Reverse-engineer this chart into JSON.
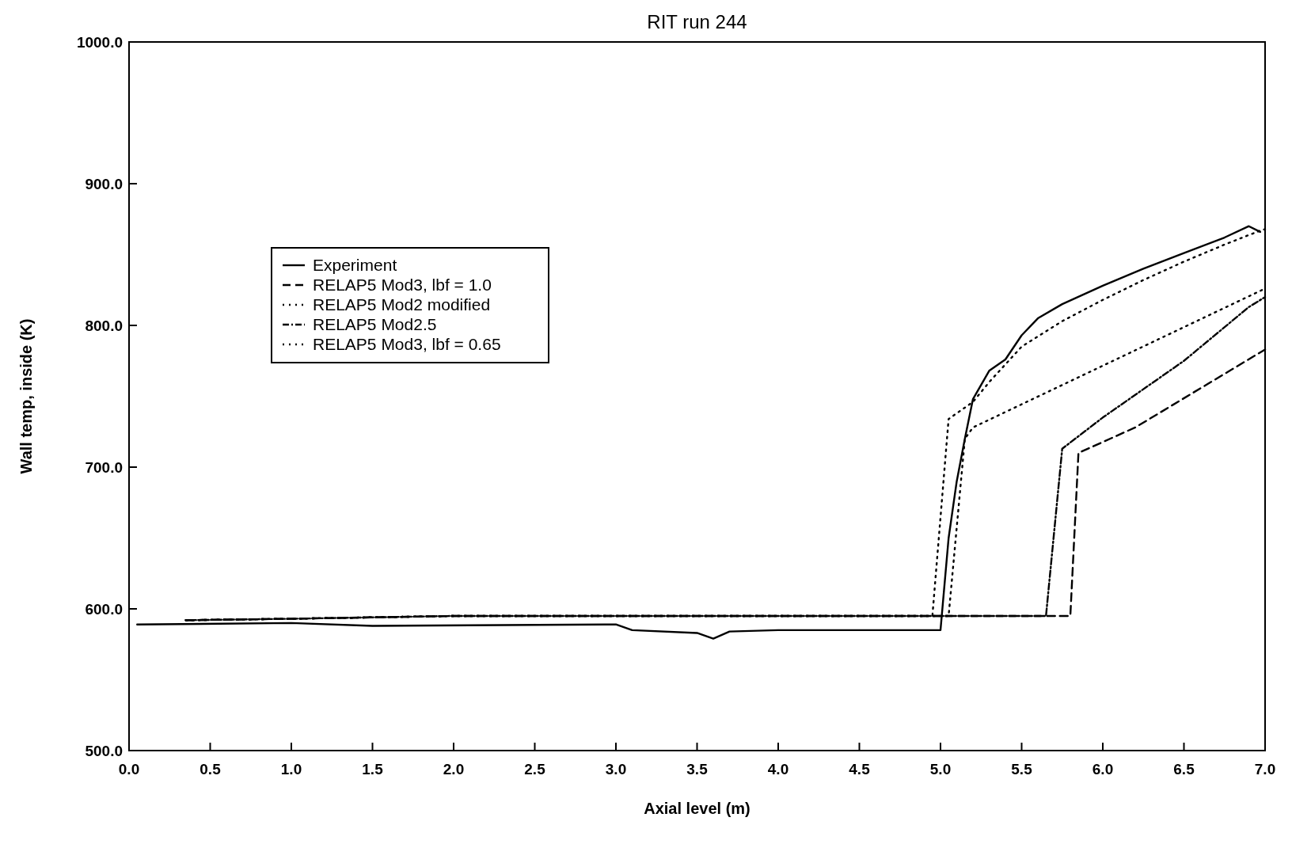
{
  "chart_data": {
    "type": "line",
    "title": "RIT  run 244",
    "xlabel": "Axial level (m)",
    "ylabel": "Wall temp, inside (K)",
    "xlim": [
      0,
      7
    ],
    "xticks": [
      {
        "value": 0,
        "label": "0.0"
      },
      {
        "value": 0.5,
        "label": "0.5"
      },
      {
        "value": 1,
        "label": "1.0"
      },
      {
        "value": 1.5,
        "label": "1.5"
      },
      {
        "value": 2,
        "label": "2.0"
      },
      {
        "value": 2.5,
        "label": "2.5"
      },
      {
        "value": 3,
        "label": "3.0"
      },
      {
        "value": 3.5,
        "label": "3.5"
      },
      {
        "value": 4,
        "label": "4.0"
      },
      {
        "value": 4.5,
        "label": "4.5"
      },
      {
        "value": 5,
        "label": "5.0"
      },
      {
        "value": 5.5,
        "label": "5.5"
      },
      {
        "value": 6,
        "label": "6.0"
      },
      {
        "value": 6.5,
        "label": "6.5"
      },
      {
        "value": 7,
        "label": "7.0"
      }
    ],
    "ylim": [
      500,
      1000
    ],
    "yticks": [
      {
        "value": 500,
        "label": "500.0"
      },
      {
        "value": 600,
        "label": "600.0"
      },
      {
        "value": 700,
        "label": "700.0"
      },
      {
        "value": 800,
        "label": "800.0"
      },
      {
        "value": 900,
        "label": "900.0"
      },
      {
        "value": 1000,
        "label": "1000.0"
      }
    ],
    "grid": false,
    "legend": "left",
    "marker": "none",
    "series": [
      {
        "name": "Experiment",
        "color": "#000000",
        "line_style": "solid",
        "x": [
          0.05,
          1.0,
          1.5,
          3.0,
          3.1,
          3.5,
          3.6,
          3.7,
          4.0,
          5.0,
          5.05,
          5.1,
          5.15,
          5.2,
          5.3,
          5.4,
          5.5,
          5.6,
          5.75,
          6.0,
          6.25,
          6.5,
          6.75,
          6.9,
          6.97
        ],
        "values": [
          589,
          590,
          588,
          589,
          585,
          583,
          579,
          584,
          585,
          585,
          650,
          690,
          720,
          748,
          768,
          776,
          793,
          805,
          815,
          828,
          840,
          851,
          862,
          870,
          866
        ]
      },
      {
        "name": "RELAP5 Mod3, lbf = 1.0",
        "color": "#000000",
        "line_style": "dashed",
        "x": [
          0.35,
          1.0,
          2.0,
          5.8,
          5.85,
          6.2,
          7.0
        ],
        "values": [
          592,
          593,
          595,
          595,
          710,
          728,
          783
        ]
      },
      {
        "name": "RELAP5 Mod2 modified",
        "color": "#000000",
        "line_style": "dotted",
        "x": [
          0.35,
          1.0,
          2.0,
          4.95,
          5.05,
          5.2,
          5.3,
          5.5,
          5.75,
          6.0,
          6.25,
          6.5,
          6.75,
          6.95,
          7.0
        ],
        "values": [
          592,
          593,
          595,
          595,
          734,
          746,
          760,
          785,
          803,
          818,
          832,
          845,
          857,
          866,
          868
        ]
      },
      {
        "name": "RELAP5 Mod2.5",
        "color": "#000000",
        "line_style": "dashdot",
        "x": [
          0.35,
          1.0,
          2.0,
          5.65,
          5.75,
          6.0,
          6.5,
          6.9,
          7.0
        ],
        "values": [
          592,
          593,
          595,
          595,
          713,
          735,
          775,
          813,
          820
        ]
      },
      {
        "name": "RELAP5 Mod3, lbf = 0.65",
        "color": "#000000",
        "line_style": "dotted",
        "x": [
          0.35,
          1.0,
          2.0,
          5.05,
          5.15,
          5.2,
          7.0
        ],
        "values": [
          592,
          593,
          595,
          595,
          720,
          728,
          826
        ]
      }
    ]
  }
}
